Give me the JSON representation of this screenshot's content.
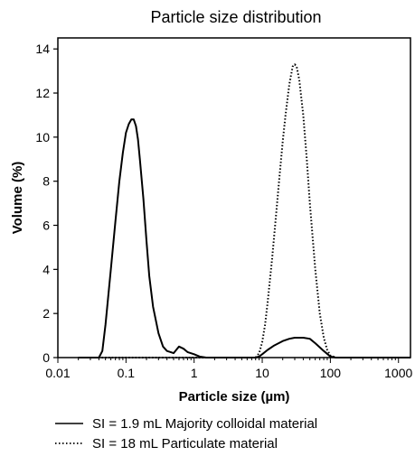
{
  "chart_data": {
    "type": "line",
    "title": "Particle size distribution",
    "xlabel": "Particle size (µm)",
    "ylabel": "Volume (%)",
    "xscale": "log",
    "xlim": [
      0.01,
      1500
    ],
    "ylim": [
      0,
      14.5
    ],
    "xticks": [
      0.01,
      0.1,
      1,
      10,
      100,
      1000
    ],
    "xtick_labels": [
      "0.01",
      "0.1",
      "1",
      "10",
      "100",
      "1000"
    ],
    "yticks": [
      0,
      2,
      4,
      6,
      8,
      10,
      12,
      14
    ],
    "ytick_labels": [
      "0",
      "2",
      "4",
      "6",
      "8",
      "10",
      "12",
      "14"
    ],
    "grid": false,
    "legend_position": "bottom",
    "series": [
      {
        "name": "SI = 1.9 mL Majority colloidal material",
        "line_style": "solid",
        "color": "#000000",
        "x": [
          0.02,
          0.04,
          0.045,
          0.05,
          0.06,
          0.07,
          0.08,
          0.09,
          0.1,
          0.11,
          0.12,
          0.13,
          0.14,
          0.15,
          0.16,
          0.18,
          0.2,
          0.22,
          0.25,
          0.3,
          0.35,
          0.4,
          0.45,
          0.5,
          0.6,
          0.7,
          0.8,
          1.0,
          1.2,
          1.5,
          2,
          5,
          8,
          9,
          10,
          12,
          15,
          20,
          25,
          30,
          40,
          50,
          60,
          80,
          100,
          120,
          200,
          1500
        ],
        "y": [
          0,
          0,
          0.3,
          1.5,
          4.0,
          6.2,
          8.0,
          9.3,
          10.2,
          10.6,
          10.8,
          10.8,
          10.5,
          9.9,
          9.0,
          7.2,
          5.3,
          3.7,
          2.3,
          1.1,
          0.5,
          0.3,
          0.25,
          0.2,
          0.5,
          0.4,
          0.25,
          0.15,
          0.05,
          0,
          0,
          0,
          0,
          0.05,
          0.15,
          0.35,
          0.55,
          0.75,
          0.85,
          0.9,
          0.9,
          0.85,
          0.65,
          0.3,
          0.05,
          0,
          0,
          0
        ]
      },
      {
        "name": "SI = 18 mL Particulate material",
        "line_style": "dotted",
        "color": "#000000",
        "x": [
          0.02,
          5,
          8,
          9,
          10,
          11,
          12,
          14,
          16,
          18,
          20,
          22,
          25,
          28,
          30,
          32,
          35,
          40,
          45,
          50,
          60,
          70,
          80,
          90,
          100,
          110,
          120,
          150,
          1500
        ],
        "y": [
          0,
          0,
          0,
          0.2,
          0.7,
          1.5,
          2.5,
          4.5,
          6.5,
          8.3,
          9.8,
          11.0,
          12.4,
          13.2,
          13.3,
          13.2,
          12.6,
          11.0,
          9.0,
          7.0,
          4.0,
          2.0,
          0.9,
          0.35,
          0.1,
          0.05,
          0,
          0,
          0
        ]
      }
    ]
  }
}
